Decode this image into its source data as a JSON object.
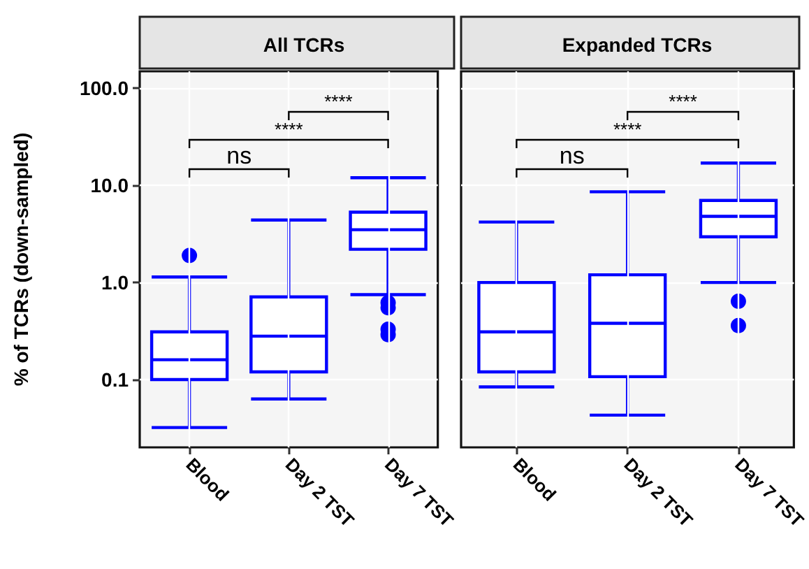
{
  "chart_data": [
    {
      "type": "box",
      "title": "All TCRs",
      "ylabel": "% of TCRs (down-sampled)",
      "categories": [
        "Blood",
        "Day 2 TST",
        "Day 7 TST"
      ],
      "log": "y",
      "grid": true,
      "ylim": [
        0.02,
        150
      ],
      "yticks": [
        {
          "value": 0.1,
          "label": "0.1"
        },
        {
          "value": 1,
          "label": "1.0"
        },
        {
          "value": 10,
          "label": "10.0"
        },
        {
          "value": 100,
          "label": "100.0"
        }
      ],
      "series": [
        {
          "color": "#0000ff",
          "boxes": [
            {
              "low": 0.032,
              "q1": 0.1,
              "median": 0.16,
              "q3": 0.31,
              "high": 1.14,
              "outliers": [
                1.9
              ]
            },
            {
              "low": 0.063,
              "q1": 0.12,
              "median": 0.28,
              "q3": 0.71,
              "high": 4.4
            },
            {
              "low": 0.75,
              "q1": 2.2,
              "median": 3.5,
              "q3": 5.3,
              "high": 12,
              "outliers": [
                0.62,
                0.55,
                0.33,
                0.29
              ]
            }
          ]
        }
      ],
      "annotations": [
        "ns",
        "****",
        "****"
      ]
    },
    {
      "type": "box",
      "title": "Expanded TCRs",
      "categories": [
        "Blood",
        "Day 2 TST",
        "Day 7 TST"
      ],
      "log": "y",
      "grid": true,
      "tick_labels": "x",
      "ylim": [
        0.02,
        150
      ],
      "yticks": [
        0.1,
        1,
        10,
        100
      ],
      "series": [
        {
          "color": "#0000ff",
          "boxes": [
            {
              "low": 0.084,
              "q1": 0.12,
              "median": 0.31,
              "q3": 1.0,
              "high": 4.2
            },
            {
              "low": 0.043,
              "q1": 0.107,
              "median": 0.38,
              "q3": 1.2,
              "high": 8.6
            },
            {
              "low": 1.0,
              "q1": 2.96,
              "median": 4.8,
              "q3": 7.0,
              "high": 17,
              "outliers": [
                0.64,
                0.36
              ]
            }
          ]
        }
      ],
      "annotations": [
        "ns",
        "****",
        "****"
      ]
    }
  ]
}
